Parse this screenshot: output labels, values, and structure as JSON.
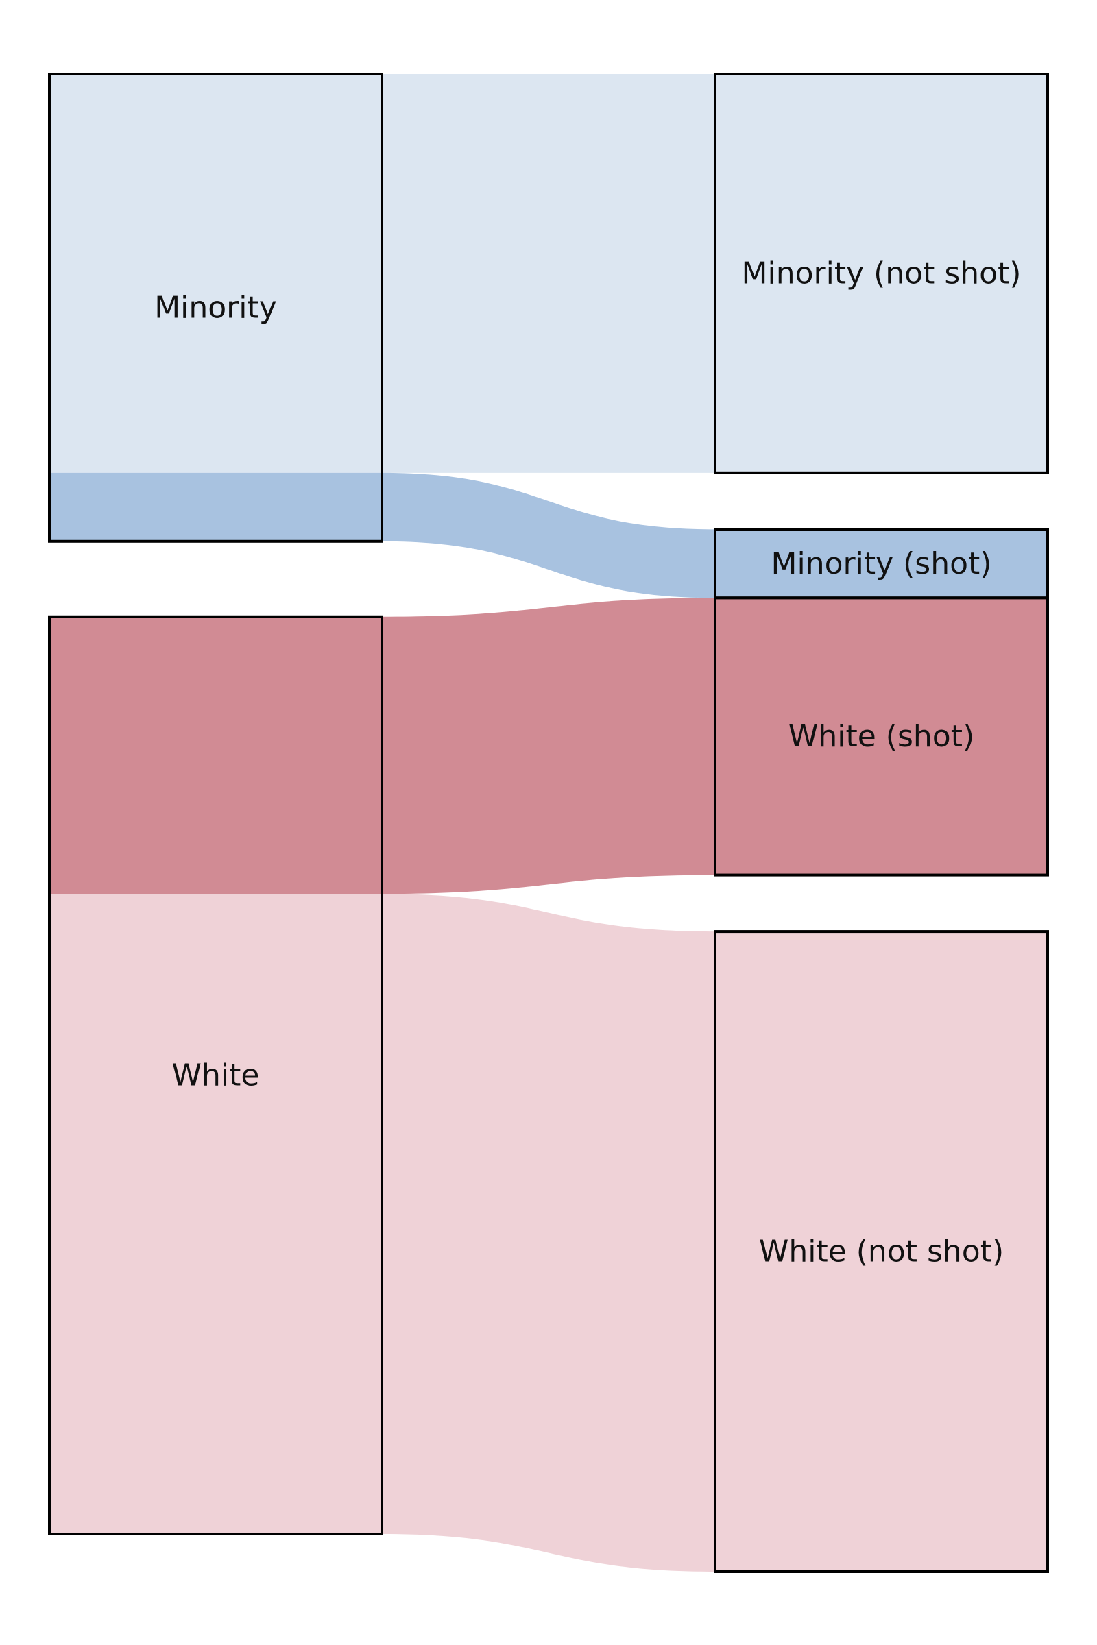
{
  "colors": {
    "minority_light": "#dce6f1",
    "minority_mid": "#a8c2e0",
    "white_dark": "#d18b94",
    "white_light": "#efd2d7",
    "stroke": "#000000"
  },
  "chart_data": {
    "type": "sankey",
    "nodes": [
      {
        "id": "minority",
        "label": "Minority",
        "column": "left"
      },
      {
        "id": "white",
        "label": "White",
        "column": "left"
      },
      {
        "id": "minority_not_shot",
        "label": "Minority (not shot)",
        "column": "right"
      },
      {
        "id": "minority_shot",
        "label": "Minority (shot)",
        "column": "right"
      },
      {
        "id": "white_shot",
        "label": "White (shot)",
        "column": "right"
      },
      {
        "id": "white_not_shot",
        "label": "White (not shot)",
        "column": "right"
      }
    ],
    "links": [
      {
        "source": "minority",
        "target": "minority_not_shot",
        "value": 390,
        "color": "#dce6f1"
      },
      {
        "source": "minority",
        "target": "minority_shot",
        "value": 67,
        "color": "#a8c2e0"
      },
      {
        "source": "white",
        "target": "white_shot",
        "value": 271,
        "color": "#d18b94"
      },
      {
        "source": "white",
        "target": "white_not_shot",
        "value": 626,
        "color": "#efd2d7"
      }
    ]
  }
}
